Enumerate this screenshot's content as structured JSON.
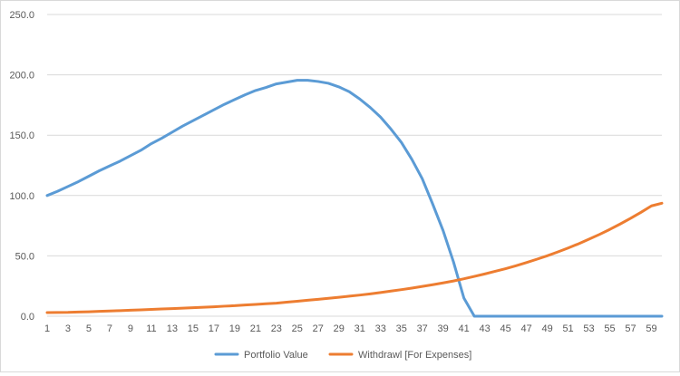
{
  "chart_data": {
    "type": "line",
    "x": [
      1,
      2,
      3,
      4,
      5,
      6,
      7,
      8,
      9,
      10,
      11,
      12,
      13,
      14,
      15,
      16,
      17,
      18,
      19,
      20,
      21,
      22,
      23,
      24,
      25,
      26,
      27,
      28,
      29,
      30,
      31,
      32,
      33,
      34,
      35,
      36,
      37,
      38,
      39,
      40,
      41,
      42,
      43,
      44,
      45,
      46,
      47,
      48,
      49,
      50,
      51,
      52,
      53,
      54,
      55,
      56,
      57,
      58,
      59,
      60
    ],
    "x_tick_labels": [
      "1",
      "3",
      "5",
      "7",
      "9",
      "11",
      "13",
      "15",
      "17",
      "19",
      "21",
      "23",
      "25",
      "27",
      "29",
      "31",
      "33",
      "35",
      "37",
      "39",
      "41",
      "43",
      "45",
      "47",
      "49",
      "51",
      "53",
      "55",
      "57",
      "59"
    ],
    "y_tick_labels": [
      "0.0",
      "50.0",
      "100.0",
      "150.0",
      "200.0",
      "250.0"
    ],
    "ylim": [
      0,
      250
    ],
    "y_ticks": [
      0,
      50,
      100,
      150,
      200,
      250
    ],
    "grid": true,
    "legend_position": "bottom",
    "series": [
      {
        "name": "Portfolio Value",
        "color": "#5B9BD5",
        "values": [
          100,
          103.5,
          107.5,
          111.5,
          116,
          120.5,
          124.5,
          128.5,
          133,
          137.5,
          143,
          147.5,
          152.5,
          157.5,
          162,
          166.5,
          171,
          175.5,
          179.5,
          183.5,
          187,
          189.5,
          192.5,
          194,
          195.5,
          195.5,
          194.5,
          193,
          190,
          186,
          180,
          173,
          165,
          155,
          144,
          130,
          114,
          93,
          71,
          45,
          15,
          0,
          0,
          0,
          0,
          0,
          0,
          0,
          0,
          0,
          0,
          0,
          0,
          0,
          0,
          0,
          0,
          0,
          0,
          0
        ]
      },
      {
        "name": "Withdrawl [For Expenses]",
        "color": "#ED7D31",
        "values": [
          3,
          3.1,
          3.2,
          3.5,
          3.7,
          4,
          4.3,
          4.6,
          5,
          5.3,
          5.6,
          6,
          6.3,
          6.7,
          7,
          7.4,
          7.8,
          8.3,
          8.7,
          9.3,
          9.8,
          10.3,
          10.8,
          11.6,
          12.4,
          13.2,
          14,
          14.8,
          15.7,
          16.6,
          17.5,
          18.5,
          19.6,
          20.8,
          22,
          23.3,
          24.7,
          26.1,
          27.6,
          29.2,
          31,
          33,
          35,
          37.2,
          39.4,
          41.8,
          44.4,
          47.2,
          50.1,
          53.2,
          56.5,
          60,
          63.8,
          67.7,
          71.9,
          76.4,
          81.1,
          86.1,
          91.4,
          93.6
        ]
      }
    ]
  }
}
